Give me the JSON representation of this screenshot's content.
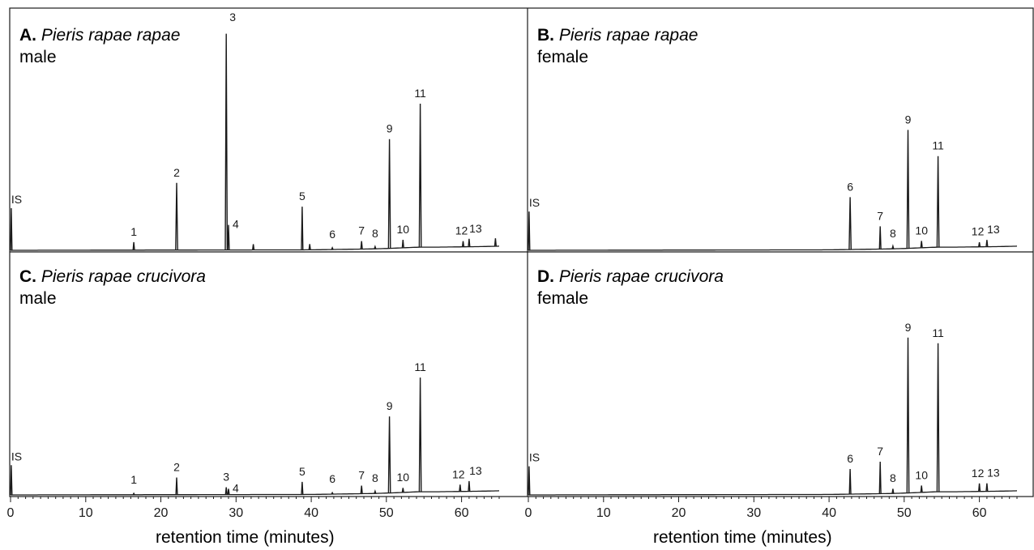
{
  "x_axis": {
    "label": "retention time (minutes)",
    "ticks": [
      "0",
      "10",
      "20",
      "30",
      "40",
      "50",
      "60"
    ]
  },
  "chart_data": [
    {
      "type": "line",
      "panel": "A",
      "title": {
        "letter": "A.",
        "species": "Pieris rapae rapae",
        "sex": "male"
      },
      "xlabel": "retention time (minutes)",
      "xlim": [
        0,
        65
      ],
      "baseline_drift": [
        [
          0,
          0
        ],
        [
          40,
          0.2
        ],
        [
          48,
          0.6
        ],
        [
          50,
          0.8
        ],
        [
          54.5,
          1.4
        ],
        [
          57,
          1.4
        ],
        [
          62,
          1.6
        ],
        [
          65,
          1.8
        ]
      ],
      "peaks": [
        {
          "label": "IS",
          "rt": 0.1,
          "height": 18.5
        },
        {
          "label": "1",
          "rt": 16.4,
          "height": 3.5
        },
        {
          "label": "2",
          "rt": 22.1,
          "height": 29.5
        },
        {
          "label": "3",
          "rt": 28.7,
          "height": 95
        },
        {
          "label": "4",
          "rt": 29.0,
          "height": 11
        },
        {
          "label": "",
          "rt": 32.3,
          "height": 2.5
        },
        {
          "label": "5",
          "rt": 38.8,
          "height": 19
        },
        {
          "label": "",
          "rt": 39.8,
          "height": 2.5
        },
        {
          "label": "6",
          "rt": 42.8,
          "height": 0.8
        },
        {
          "label": "7",
          "rt": 46.7,
          "height": 3.5
        },
        {
          "label": "8",
          "rt": 48.5,
          "height": 1.0
        },
        {
          "label": "9",
          "rt": 50.4,
          "height": 48
        },
        {
          "label": "10",
          "rt": 52.2,
          "height": 3.5
        },
        {
          "label": "11",
          "rt": 54.5,
          "height": 63
        },
        {
          "label": "12",
          "rt": 60.2,
          "height": 2.5
        },
        {
          "label": "13",
          "rt": 61.0,
          "height": 3.5
        },
        {
          "label": "",
          "rt": 64.5,
          "height": 3.5
        }
      ]
    },
    {
      "type": "line",
      "panel": "B",
      "title": {
        "letter": "B.",
        "species": "Pieris rapae rapae",
        "sex": "female"
      },
      "xlabel": "retention time (minutes)",
      "xlim": [
        0,
        65
      ],
      "baseline_drift": [
        [
          0,
          0
        ],
        [
          40,
          0.2
        ],
        [
          48,
          0.6
        ],
        [
          50,
          0.8
        ],
        [
          54.5,
          1.4
        ],
        [
          57,
          1.4
        ],
        [
          62,
          1.6
        ],
        [
          65,
          1.8
        ]
      ],
      "peaks": [
        {
          "label": "IS",
          "rt": 0.1,
          "height": 17
        },
        {
          "label": "6",
          "rt": 42.8,
          "height": 23
        },
        {
          "label": "7",
          "rt": 46.8,
          "height": 10
        },
        {
          "label": "8",
          "rt": 48.5,
          "height": 1.2
        },
        {
          "label": "9",
          "rt": 50.5,
          "height": 52
        },
        {
          "label": "10",
          "rt": 52.3,
          "height": 3
        },
        {
          "label": "11",
          "rt": 54.5,
          "height": 40
        },
        {
          "label": "12",
          "rt": 60.0,
          "height": 2
        },
        {
          "label": "13",
          "rt": 61.0,
          "height": 3
        }
      ]
    },
    {
      "type": "line",
      "panel": "C",
      "title": {
        "letter": "C.",
        "species": "Pieris rapae crucivora",
        "sex": "male"
      },
      "xlabel": "retention time (minutes)",
      "xlim": [
        0,
        65
      ],
      "baseline_drift": [
        [
          0,
          0
        ],
        [
          40,
          0.2
        ],
        [
          48,
          0.6
        ],
        [
          50,
          0.8
        ],
        [
          54.5,
          1.4
        ],
        [
          57,
          1.4
        ],
        [
          62,
          1.6
        ],
        [
          65,
          1.8
        ]
      ],
      "peaks": [
        {
          "label": "IS",
          "rt": 0.1,
          "height": 13
        },
        {
          "label": "1",
          "rt": 16.4,
          "height": 0.6
        },
        {
          "label": "2",
          "rt": 22.1,
          "height": 7.5
        },
        {
          "label": "3",
          "rt": 28.7,
          "height": 3.2
        },
        {
          "label": "4",
          "rt": 29.0,
          "height": 2.5
        },
        {
          "label": "5",
          "rt": 38.8,
          "height": 5.5
        },
        {
          "label": "6",
          "rt": 42.8,
          "height": 0.6
        },
        {
          "label": "7",
          "rt": 46.7,
          "height": 3.5
        },
        {
          "label": "8",
          "rt": 48.5,
          "height": 1.0
        },
        {
          "label": "9",
          "rt": 50.4,
          "height": 33.5
        },
        {
          "label": "10",
          "rt": 52.2,
          "height": 2
        },
        {
          "label": "11",
          "rt": 54.5,
          "height": 50
        },
        {
          "label": "12",
          "rt": 59.8,
          "height": 3
        },
        {
          "label": "13",
          "rt": 61.0,
          "height": 4.5
        }
      ]
    },
    {
      "type": "line",
      "panel": "D",
      "title": {
        "letter": "D.",
        "species": "Pieris rapae crucivora",
        "sex": "female"
      },
      "xlabel": "retention time (minutes)",
      "xlim": [
        0,
        65
      ],
      "baseline_drift": [
        [
          0,
          0
        ],
        [
          40,
          0.2
        ],
        [
          48,
          0.6
        ],
        [
          50,
          0.8
        ],
        [
          54.5,
          1.4
        ],
        [
          57,
          1.4
        ],
        [
          62,
          1.6
        ],
        [
          65,
          1.8
        ]
      ],
      "peaks": [
        {
          "label": "IS",
          "rt": 0.1,
          "height": 12.5
        },
        {
          "label": "6",
          "rt": 42.8,
          "height": 11
        },
        {
          "label": "7",
          "rt": 46.8,
          "height": 14
        },
        {
          "label": "8",
          "rt": 48.5,
          "height": 2
        },
        {
          "label": "9",
          "rt": 50.5,
          "height": 68
        },
        {
          "label": "10",
          "rt": 52.3,
          "height": 3
        },
        {
          "label": "11",
          "rt": 54.5,
          "height": 65
        },
        {
          "label": "12",
          "rt": 60.0,
          "height": 3.5
        },
        {
          "label": "13",
          "rt": 61.0,
          "height": 3.5
        }
      ]
    }
  ]
}
